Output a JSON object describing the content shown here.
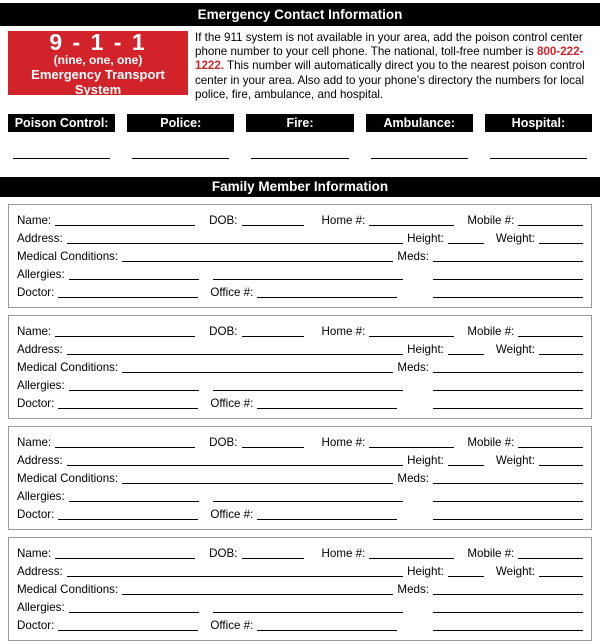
{
  "colors": {
    "accent_red": "#d2232a",
    "bar_black": "#000000",
    "box_border": "#9a9a9a"
  },
  "header": {
    "title": "Emergency Contact Information"
  },
  "emergency_911": {
    "number": "9 - 1 - 1",
    "words": "(nine, one, one)",
    "subtitle": "Emergency Transport System"
  },
  "instructions": {
    "text_before": "If the 911 system is not available in your area, add the poison control center phone number to your cell phone. The national, toll-free number is ",
    "phone": "800-222-1222.",
    "text_after": " This number will automatically direct you to the nearest poison control center in your area. Also add to your phone’s directory the numbers for local police, fire, ambulance, and hospital."
  },
  "emergency_contacts": {
    "labels": [
      "Poison Control:",
      "Police:",
      "Fire:",
      "Ambulance:",
      "Hospital:"
    ]
  },
  "family_section": {
    "title": "Family Member Information",
    "member_count": 4,
    "fields": {
      "name": "Name:",
      "dob": "DOB:",
      "home": "Home #:",
      "mobile": "Mobile #:",
      "address": "Address:",
      "height": "Height:",
      "weight": "Weight:",
      "medical": "Medical Conditions:",
      "meds": "Meds:",
      "allergies": "Allergies:",
      "doctor": "Doctor:",
      "office": "Office #:"
    }
  }
}
